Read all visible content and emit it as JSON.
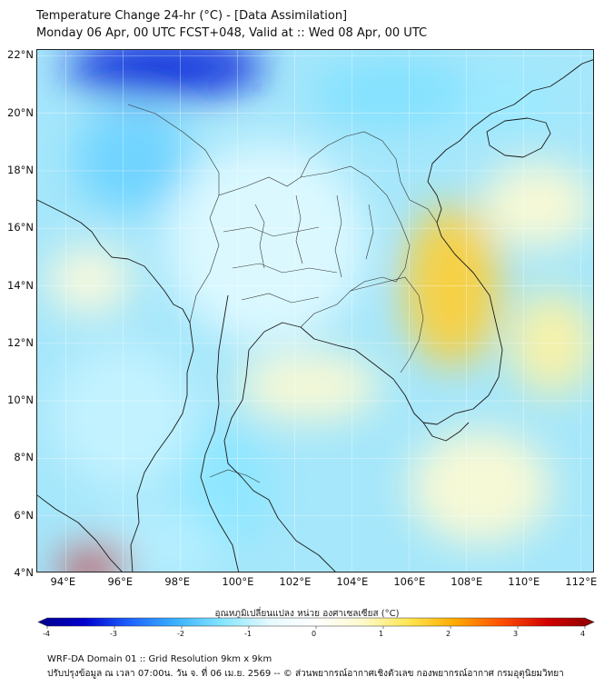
{
  "title": {
    "line1": "Temperature Change 24-hr (°C) - [Data Assimilation]",
    "line2": "Monday 06 Apr, 00 UTC FCST+048, Valid at :: Wed 08 Apr, 00 UTC"
  },
  "map": {
    "lon_range": [
      93,
      112.5
    ],
    "lat_range": [
      4,
      22.2
    ],
    "lat_labels": [
      "22°N",
      "20°N",
      "18°N",
      "16°N",
      "14°N",
      "12°N",
      "10°N",
      "8°N",
      "6°N",
      "4°N"
    ],
    "lon_labels": [
      "94°E",
      "96°E",
      "98°E",
      "100°E",
      "102°E",
      "104°E",
      "106°E",
      "108°E",
      "110°E",
      "112°E"
    ],
    "lat_values": [
      22,
      20,
      18,
      16,
      14,
      12,
      10,
      8,
      6,
      4
    ],
    "lon_values": [
      94,
      96,
      98,
      100,
      102,
      104,
      106,
      108,
      110,
      112
    ],
    "field_regions": [
      {
        "name": "cold-core-north-myanmar",
        "lon": 97.5,
        "lat": 21.6,
        "rx": 3.5,
        "ry": 1.0,
        "value": -3.2
      },
      {
        "name": "cold-west-myanmar",
        "lon": 96.3,
        "lat": 18.4,
        "rx": 2.0,
        "ry": 1.8,
        "value": -1.6
      },
      {
        "name": "cold-north-vietnam",
        "lon": 105.5,
        "lat": 20.7,
        "rx": 3.0,
        "ry": 1.2,
        "value": -1.4
      },
      {
        "name": "cold-hainan",
        "lon": 109.5,
        "lat": 20.4,
        "rx": 1.8,
        "ry": 1.0,
        "value": -1.2
      },
      {
        "name": "cold-peninsula",
        "lon": 99.6,
        "lat": 7.0,
        "rx": 1.6,
        "ry": 2.2,
        "value": -1.3
      },
      {
        "name": "cold-andaman",
        "lon": 96.0,
        "lat": 9.5,
        "rx": 2.5,
        "ry": 2.5,
        "value": -0.9
      },
      {
        "name": "cold-thailand",
        "lon": 101.0,
        "lat": 15.5,
        "rx": 3.5,
        "ry": 3.5,
        "value": -0.7
      },
      {
        "name": "cold-sumatra",
        "lon": 97.0,
        "lat": 5.0,
        "rx": 2.5,
        "ry": 1.2,
        "value": -1.0
      },
      {
        "name": "warm-central-vietnam",
        "lon": 107.5,
        "lat": 14.0,
        "rx": 1.7,
        "ry": 2.8,
        "value": 1.6
      },
      {
        "name": "warm-andaman-coast",
        "lon": 95.0,
        "lat": 4.3,
        "rx": 1.2,
        "ry": 0.7,
        "value": 3.5
      },
      {
        "name": "warm-gulf",
        "lon": 102.5,
        "lat": 10.5,
        "rx": 2.5,
        "ry": 1.2,
        "value": 0.6
      },
      {
        "name": "warm-scs-east",
        "lon": 111.0,
        "lat": 12.0,
        "rx": 1.5,
        "ry": 1.8,
        "value": 0.9
      },
      {
        "name": "warm-scs-south",
        "lon": 108.5,
        "lat": 7.0,
        "rx": 2.5,
        "ry": 2.0,
        "value": 0.6
      },
      {
        "name": "warm-scs-north",
        "lon": 110.5,
        "lat": 16.8,
        "rx": 2.0,
        "ry": 1.5,
        "value": 0.6
      },
      {
        "name": "warm-west-bay",
        "lon": 94.8,
        "lat": 14.2,
        "rx": 1.5,
        "ry": 1.2,
        "value": 0.5
      }
    ]
  },
  "colorbar": {
    "title": "อุณหภูมิเปลี่ยนแปลง หน่วย องศาเซลเซียส (°C)",
    "ticks": [
      "-4",
      "-3",
      "-2",
      "-1",
      "0",
      "1",
      "2",
      "3",
      "4"
    ],
    "tick_values": [
      -4,
      -3,
      -2,
      -1,
      0,
      1,
      2,
      3,
      4
    ],
    "range": [
      -4,
      4
    ],
    "stops": [
      "#00008b",
      "#0000cd",
      "#1e64ff",
      "#3cb4ff",
      "#87e6ff",
      "#e6faff",
      "#ffffff",
      "#fffacd",
      "#ffe650",
      "#ffaa00",
      "#ff5000",
      "#d20000",
      "#8b0000"
    ]
  },
  "footer": {
    "line1": "WRF-DA Domain 01 :: Grid Resolution 9km x 9km",
    "line2": "ปรับปรุงข้อมูล ณ เวลา 07:00น. วัน จ. ที่ 06 เม.ย. 2569 -- © ส่วนพยากรณ์อากาศเชิงตัวเลข กองพยากรณ์อากาศ กรมอุตุนิยมวิทยา"
  }
}
